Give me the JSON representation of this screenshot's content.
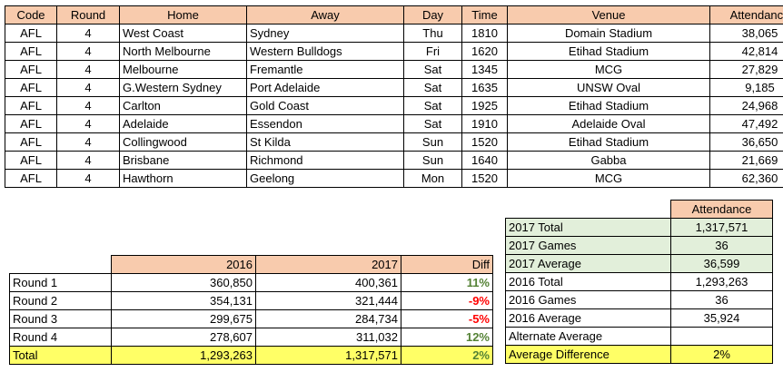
{
  "games_table": {
    "headers": [
      "Code",
      "Round",
      "Home",
      "Away",
      "Day",
      "Time",
      "Venue",
      "Attendance"
    ],
    "rows": [
      [
        "AFL",
        "4",
        "West Coast",
        "Sydney",
        "Thu",
        "1810",
        "Domain Stadium",
        "38,065"
      ],
      [
        "AFL",
        "4",
        "North Melbourne",
        "Western Bulldogs",
        "Fri",
        "1620",
        "Etihad Stadium",
        "42,814"
      ],
      [
        "AFL",
        "4",
        "Melbourne",
        "Fremantle",
        "Sat",
        "1345",
        "MCG",
        "27,829"
      ],
      [
        "AFL",
        "4",
        "G.Western Sydney",
        "Port Adelaide",
        "Sat",
        "1635",
        "UNSW Oval",
        "9,185"
      ],
      [
        "AFL",
        "4",
        "Carlton",
        "Gold Coast",
        "Sat",
        "1925",
        "Etihad Stadium",
        "24,968"
      ],
      [
        "AFL",
        "4",
        "Adelaide",
        "Essendon",
        "Sat",
        "1910",
        "Adelaide Oval",
        "47,492"
      ],
      [
        "AFL",
        "4",
        "Collingwood",
        "St Kilda",
        "Sun",
        "1520",
        "Etihad Stadium",
        "36,650"
      ],
      [
        "AFL",
        "4",
        "Brisbane",
        "Richmond",
        "Sun",
        "1640",
        "Gabba",
        "21,669"
      ],
      [
        "AFL",
        "4",
        "Hawthorn",
        "Geelong",
        "Mon",
        "1520",
        "MCG",
        "62,360"
      ]
    ]
  },
  "summary": {
    "header": "Attendance",
    "rows": [
      {
        "label": "2017 Total",
        "value": "1,317,571",
        "style": "green"
      },
      {
        "label": "2017 Games",
        "value": "36",
        "style": "green"
      },
      {
        "label": "2017 Average",
        "value": "36,599",
        "style": "green"
      },
      {
        "label": "2016 Total",
        "value": "1,293,263",
        "style": "plain"
      },
      {
        "label": "2016 Games",
        "value": "36",
        "style": "plain"
      },
      {
        "label": "2016 Average",
        "value": "35,924",
        "style": "plain"
      },
      {
        "label": "Alternate Average",
        "value": "",
        "style": "plain"
      },
      {
        "label": "Average Difference",
        "value": "2%",
        "style": "yellow"
      }
    ]
  },
  "rounds": {
    "headers": [
      "",
      "2016",
      "2017",
      "Diff"
    ],
    "rows": [
      {
        "label": "Round 1",
        "y2016": "360,850",
        "y2017": "400,361",
        "diff": "11%",
        "sign": "pos"
      },
      {
        "label": "Round 2",
        "y2016": "354,131",
        "y2017": "321,444",
        "diff": "-9%",
        "sign": "neg"
      },
      {
        "label": "Round 3",
        "y2016": "299,675",
        "y2017": "284,734",
        "diff": "-5%",
        "sign": "neg"
      },
      {
        "label": "Round 4",
        "y2016": "278,607",
        "y2017": "311,032",
        "diff": "12%",
        "sign": "pos"
      }
    ],
    "total": {
      "label": "Total",
      "y2016": "1,293,263",
      "y2017": "1,317,571",
      "diff": "2%"
    }
  },
  "colors": {
    "header_bg": "#f8cbad",
    "green_bg": "#e2efda",
    "yellow_bg": "#ffff66",
    "positive": "#548235",
    "negative": "#ff0000"
  }
}
